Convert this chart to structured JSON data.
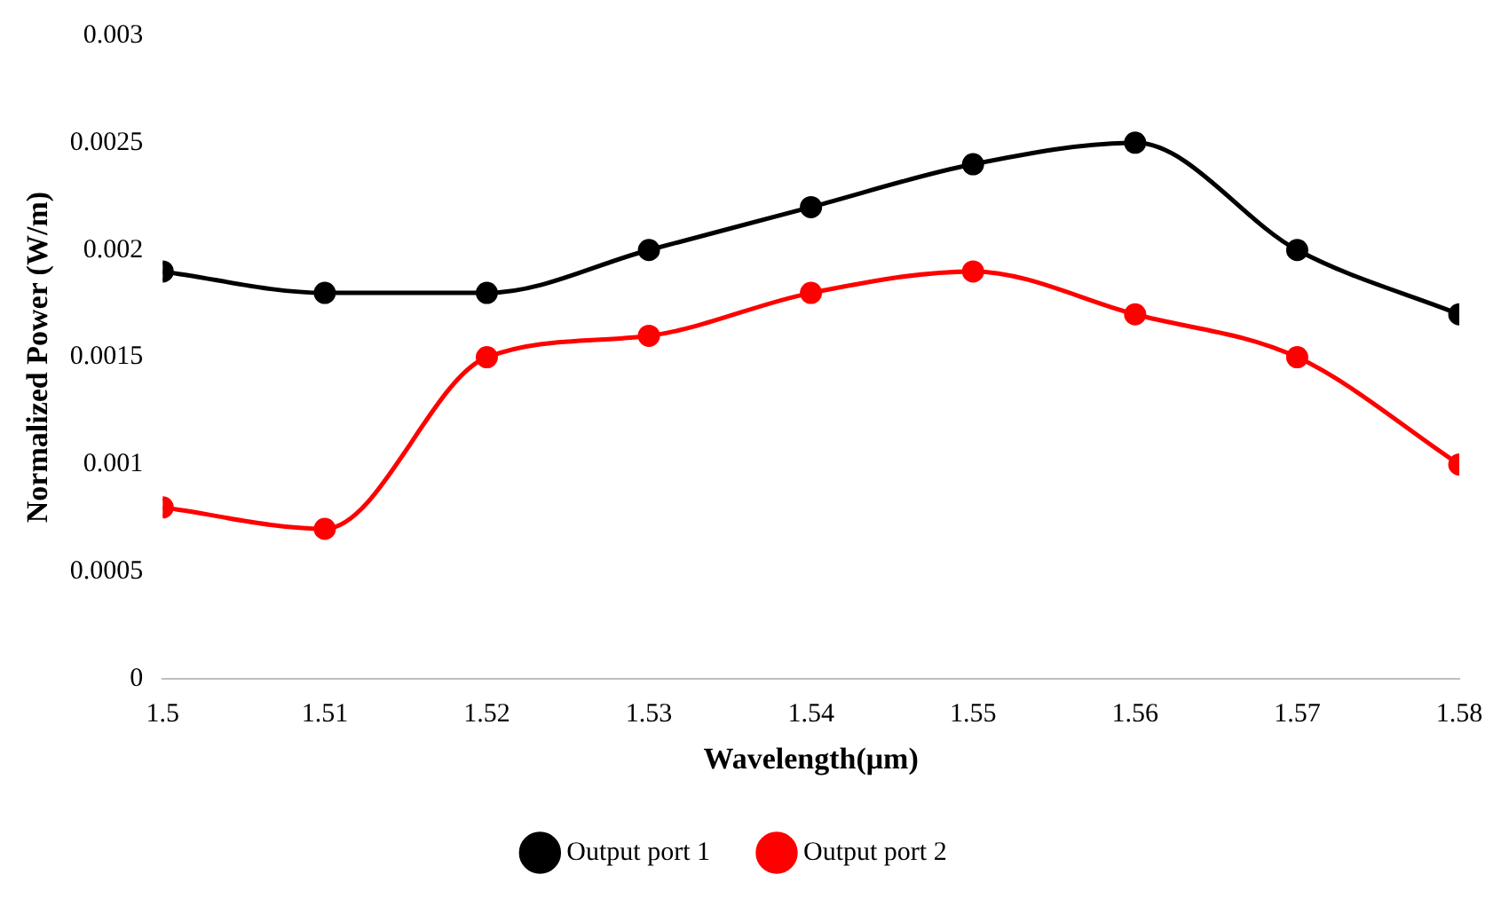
{
  "chart_data": {
    "type": "line",
    "xlabel": "Wavelength(μm)",
    "ylabel": "Normalized Power (W/m)",
    "x": [
      1.5,
      1.51,
      1.52,
      1.53,
      1.54,
      1.55,
      1.56,
      1.57,
      1.58
    ],
    "series": [
      {
        "name": "Output port 1",
        "color": "#000000",
        "values": [
          0.0019,
          0.0018,
          0.0018,
          0.002,
          0.0022,
          0.0024,
          0.0025,
          0.002,
          0.0017
        ]
      },
      {
        "name": "Output port 2",
        "color": "#ff0000",
        "values": [
          0.0008,
          0.0007,
          0.0015,
          0.0016,
          0.0018,
          0.0019,
          0.0017,
          0.0015,
          0.001
        ]
      }
    ],
    "xlim": [
      1.5,
      1.58
    ],
    "xticks": [
      1.5,
      1.51,
      1.52,
      1.53,
      1.54,
      1.55,
      1.56,
      1.57,
      1.58
    ],
    "ylim": [
      0,
      0.003
    ],
    "yticks": [
      0,
      0.0005,
      0.001,
      0.0015,
      0.002,
      0.0025,
      0.003
    ],
    "grid": false,
    "legend": "bottom",
    "marker": "circle",
    "line_style": "solid"
  }
}
